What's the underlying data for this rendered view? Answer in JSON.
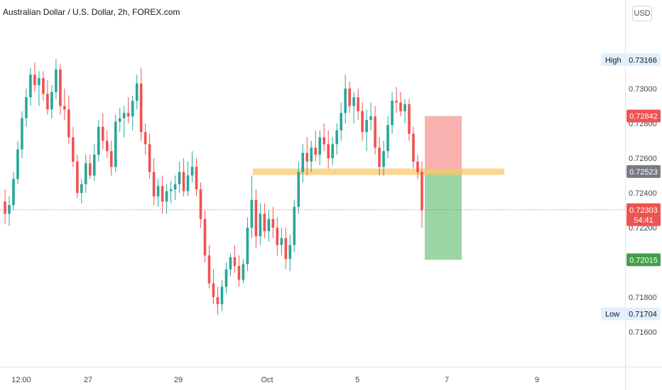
{
  "header": {
    "title": "Australian Dollar / U.S. Dollar, 2h, FOREX.com",
    "currency_button": "USD"
  },
  "colors": {
    "up": "#26a69a",
    "down": "#ef5350",
    "zone": "#f9c86b",
    "stop": "#f7a9a5",
    "target": "#8fd19b"
  },
  "chart_data": {
    "type": "candlestick",
    "ylim": [
      0.7147,
      0.7342
    ],
    "y_ticks": [
      "0.73000",
      "0.72800",
      "0.72600",
      "0.72400",
      "0.72200",
      "0.71800",
      "0.71600"
    ],
    "x_ticks": [
      "12:00",
      "27",
      "29",
      "Oct",
      "5",
      "7",
      "9"
    ],
    "price_labels": {
      "high": {
        "label": "High",
        "value": "0.73166"
      },
      "stop": {
        "value": "0.72842"
      },
      "entry": {
        "value": "0.72523"
      },
      "current": {
        "value": "0.72303",
        "countdown": "54:41"
      },
      "target": {
        "value": "0.72015"
      },
      "low": {
        "label": "Low",
        "value": "0.71704"
      }
    },
    "zone": {
      "from": 0.7254,
      "to": 0.72515
    },
    "position": {
      "stop": 0.72842,
      "entry": 0.72523,
      "target": 0.72015
    },
    "candles": [
      [
        0.7235,
        0.7242,
        0.7222,
        0.7228
      ],
      [
        0.7228,
        0.7238,
        0.7221,
        0.7233
      ],
      [
        0.7233,
        0.7252,
        0.723,
        0.7248
      ],
      [
        0.7248,
        0.727,
        0.7245,
        0.7265
      ],
      [
        0.7265,
        0.7287,
        0.726,
        0.7283
      ],
      [
        0.7283,
        0.73,
        0.7278,
        0.7295
      ],
      [
        0.7295,
        0.7312,
        0.729,
        0.7308
      ],
      [
        0.7308,
        0.7315,
        0.7298,
        0.7302
      ],
      [
        0.7302,
        0.731,
        0.729,
        0.7306
      ],
      [
        0.7306,
        0.731,
        0.7293,
        0.7297
      ],
      [
        0.7297,
        0.7305,
        0.7285,
        0.7288
      ],
      [
        0.7288,
        0.7302,
        0.7283,
        0.7298
      ],
      [
        0.7298,
        0.7317,
        0.7294,
        0.7311
      ],
      [
        0.7311,
        0.7314,
        0.7285,
        0.729
      ],
      [
        0.729,
        0.73,
        0.7282,
        0.7288
      ],
      [
        0.7288,
        0.7296,
        0.7268,
        0.7272
      ],
      [
        0.7272,
        0.7278,
        0.7255,
        0.7258
      ],
      [
        0.7258,
        0.7262,
        0.7237,
        0.724
      ],
      [
        0.724,
        0.7248,
        0.7234,
        0.7245
      ],
      [
        0.7245,
        0.7262,
        0.724,
        0.7257
      ],
      [
        0.7257,
        0.7262,
        0.7248,
        0.725
      ],
      [
        0.725,
        0.7268,
        0.7247,
        0.7262
      ],
      [
        0.7262,
        0.7282,
        0.7258,
        0.7278
      ],
      [
        0.7278,
        0.7286,
        0.7265,
        0.727
      ],
      [
        0.727,
        0.7276,
        0.726,
        0.7264
      ],
      [
        0.7264,
        0.727,
        0.725,
        0.7255
      ],
      [
        0.7255,
        0.7285,
        0.7252,
        0.7281
      ],
      [
        0.7281,
        0.7289,
        0.7275,
        0.7283
      ],
      [
        0.7283,
        0.729,
        0.7272,
        0.7286
      ],
      [
        0.7286,
        0.7295,
        0.728,
        0.7284
      ],
      [
        0.7284,
        0.7296,
        0.7276,
        0.7293
      ],
      [
        0.7293,
        0.7308,
        0.7288,
        0.7303
      ],
      [
        0.7303,
        0.7312,
        0.727,
        0.7275
      ],
      [
        0.7275,
        0.728,
        0.7262,
        0.7268
      ],
      [
        0.7268,
        0.7274,
        0.7248,
        0.7252
      ],
      [
        0.7252,
        0.726,
        0.7233,
        0.7238
      ],
      [
        0.7238,
        0.7248,
        0.7232,
        0.7244
      ],
      [
        0.7244,
        0.725,
        0.7228,
        0.7235
      ],
      [
        0.7235,
        0.7245,
        0.7228,
        0.7241
      ],
      [
        0.7241,
        0.7247,
        0.7234,
        0.7242
      ],
      [
        0.7242,
        0.725,
        0.7236,
        0.7245
      ],
      [
        0.7245,
        0.7258,
        0.724,
        0.7252
      ],
      [
        0.7252,
        0.726,
        0.7238,
        0.7241
      ],
      [
        0.7241,
        0.7258,
        0.7238,
        0.725
      ],
      [
        0.725,
        0.7264,
        0.7246,
        0.7255
      ],
      [
        0.7255,
        0.726,
        0.7238,
        0.7242
      ],
      [
        0.7242,
        0.7246,
        0.722,
        0.7225
      ],
      [
        0.7225,
        0.723,
        0.72,
        0.7204
      ],
      [
        0.7204,
        0.721,
        0.7185,
        0.7188
      ],
      [
        0.7188,
        0.7196,
        0.7176,
        0.718
      ],
      [
        0.718,
        0.7186,
        0.717,
        0.7176
      ],
      [
        0.7176,
        0.719,
        0.7172,
        0.7186
      ],
      [
        0.7186,
        0.72,
        0.7182,
        0.7196
      ],
      [
        0.7196,
        0.7205,
        0.7192,
        0.7203
      ],
      [
        0.7203,
        0.721,
        0.7194,
        0.7198
      ],
      [
        0.7198,
        0.7204,
        0.7186,
        0.719
      ],
      [
        0.719,
        0.7202,
        0.7188,
        0.7199
      ],
      [
        0.7199,
        0.7226,
        0.7195,
        0.722
      ],
      [
        0.722,
        0.725,
        0.7214,
        0.7236
      ],
      [
        0.7236,
        0.7242,
        0.7208,
        0.7215
      ],
      [
        0.7215,
        0.7234,
        0.721,
        0.7228
      ],
      [
        0.7228,
        0.7234,
        0.7214,
        0.7218
      ],
      [
        0.7218,
        0.723,
        0.7212,
        0.7225
      ],
      [
        0.7225,
        0.7232,
        0.7214,
        0.722
      ],
      [
        0.722,
        0.7226,
        0.7204,
        0.721
      ],
      [
        0.721,
        0.722,
        0.7204,
        0.7214
      ],
      [
        0.7214,
        0.722,
        0.7196,
        0.7202
      ],
      [
        0.7202,
        0.7216,
        0.7195,
        0.721
      ],
      [
        0.721,
        0.7236,
        0.7206,
        0.7232
      ],
      [
        0.7232,
        0.7258,
        0.7228,
        0.7252
      ],
      [
        0.7252,
        0.7268,
        0.7246,
        0.7263
      ],
      [
        0.7263,
        0.7272,
        0.725,
        0.7258
      ],
      [
        0.7258,
        0.727,
        0.7252,
        0.7266
      ],
      [
        0.7266,
        0.7276,
        0.7258,
        0.7262
      ],
      [
        0.7262,
        0.7276,
        0.7256,
        0.7272
      ],
      [
        0.7272,
        0.728,
        0.7264,
        0.7268
      ],
      [
        0.7268,
        0.7276,
        0.7254,
        0.726
      ],
      [
        0.726,
        0.7272,
        0.7256,
        0.7268
      ],
      [
        0.7268,
        0.728,
        0.7262,
        0.7276
      ],
      [
        0.7276,
        0.7292,
        0.727,
        0.7286
      ],
      [
        0.7286,
        0.7308,
        0.728,
        0.73
      ],
      [
        0.73,
        0.7304,
        0.7286,
        0.729
      ],
      [
        0.729,
        0.7298,
        0.728,
        0.7295
      ],
      [
        0.7295,
        0.73,
        0.7282,
        0.7287
      ],
      [
        0.7287,
        0.7292,
        0.727,
        0.7275
      ],
      [
        0.7275,
        0.7288,
        0.7264,
        0.7282
      ],
      [
        0.7282,
        0.7292,
        0.7276,
        0.7284
      ],
      [
        0.7284,
        0.729,
        0.7262,
        0.7266
      ],
      [
        0.7266,
        0.7272,
        0.725,
        0.7255
      ],
      [
        0.7255,
        0.727,
        0.725,
        0.7264
      ],
      [
        0.7264,
        0.7284,
        0.726,
        0.7279
      ],
      [
        0.7279,
        0.7298,
        0.7274,
        0.7293
      ],
      [
        0.7293,
        0.7301,
        0.7286,
        0.7292
      ],
      [
        0.7292,
        0.7298,
        0.7284,
        0.7287
      ],
      [
        0.7287,
        0.7294,
        0.728,
        0.7291
      ],
      [
        0.7291,
        0.7294,
        0.727,
        0.7274
      ],
      [
        0.7274,
        0.7278,
        0.7254,
        0.7258
      ],
      [
        0.7258,
        0.7262,
        0.7248,
        0.7252
      ],
      [
        0.7252,
        0.7258,
        0.722,
        0.723
      ]
    ]
  }
}
